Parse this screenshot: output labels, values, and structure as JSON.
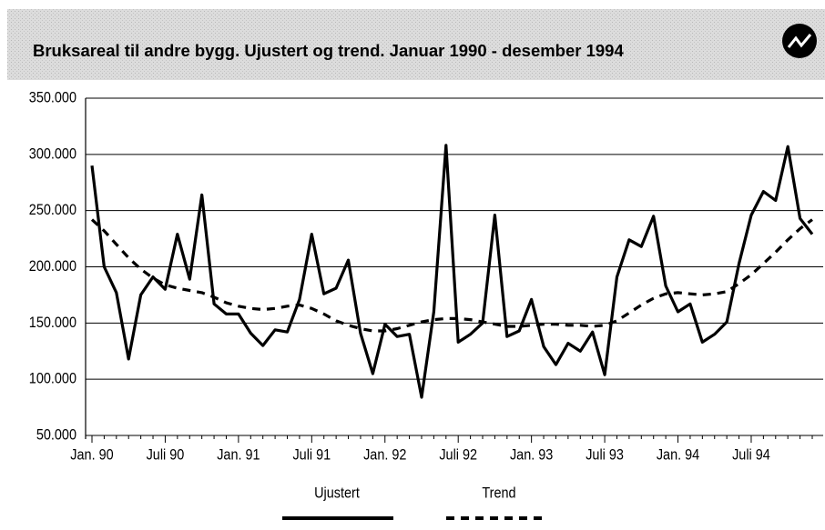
{
  "chart_data": {
    "type": "line",
    "title": "Bruksareal til andre bygg. Ujustert og trend. Januar 1990 - desember 1994",
    "categories": [
      "Jan. 90",
      null,
      null,
      null,
      null,
      null,
      "Juli 90",
      null,
      null,
      null,
      null,
      null,
      "Jan. 91",
      null,
      null,
      null,
      null,
      null,
      "Juli 91",
      null,
      null,
      null,
      null,
      null,
      "Jan. 92",
      null,
      null,
      null,
      null,
      null,
      "Juli 92",
      null,
      null,
      null,
      null,
      null,
      "Jan. 93",
      null,
      null,
      null,
      null,
      null,
      "Juli 93",
      null,
      null,
      null,
      null,
      null,
      "Jan. 94",
      null,
      null,
      null,
      null,
      null,
      "Juli 94",
      null,
      null,
      null,
      null,
      null
    ],
    "series": [
      {
        "name": "Ujustert",
        "color": "#000000",
        "dash": false,
        "values": [
          290000,
          200000,
          177000,
          118000,
          175000,
          191000,
          180000,
          229000,
          189000,
          264000,
          167000,
          158000,
          158000,
          141000,
          130000,
          144000,
          142000,
          171000,
          229000,
          176000,
          181000,
          206000,
          141000,
          105000,
          149000,
          138000,
          140000,
          84000,
          160000,
          308000,
          133000,
          140000,
          150000,
          246000,
          138000,
          143000,
          171000,
          129000,
          113000,
          132000,
          125000,
          142000,
          104000,
          191000,
          224000,
          218000,
          245000,
          183000,
          160000,
          167000,
          133000,
          140000,
          151000,
          203000,
          246000,
          267000,
          259000,
          307000,
          243000,
          229000
        ]
      },
      {
        "name": "Trend",
        "color": "#000000",
        "dash": true,
        "values": [
          242000,
          232000,
          220000,
          208000,
          198000,
          190000,
          184000,
          181000,
          179000,
          177000,
          173000,
          168000,
          165000,
          163000,
          162000,
          163000,
          165000,
          166000,
          163000,
          158000,
          152000,
          148000,
          145000,
          143000,
          143000,
          145000,
          148000,
          151000,
          153000,
          154000,
          154000,
          153000,
          151000,
          149000,
          147000,
          147000,
          148000,
          149000,
          149000,
          148000,
          148000,
          147000,
          148000,
          152000,
          159000,
          166000,
          172000,
          176000,
          177000,
          176000,
          175000,
          176000,
          178000,
          185000,
          193000,
          203000,
          213000,
          224000,
          234000,
          242000
        ]
      }
    ],
    "ylim": [
      50000,
      350000
    ],
    "yticks": [
      {
        "value": 50000,
        "label": "50.000"
      },
      {
        "value": 100000,
        "label": "100.000"
      },
      {
        "value": 150000,
        "label": "150.000"
      },
      {
        "value": 200000,
        "label": "200.000"
      },
      {
        "value": 250000,
        "label": "250.000"
      },
      {
        "value": 300000,
        "label": "300.000"
      },
      {
        "value": 350000,
        "label": "350.000"
      }
    ],
    "grid": true,
    "legend": "bottom"
  }
}
